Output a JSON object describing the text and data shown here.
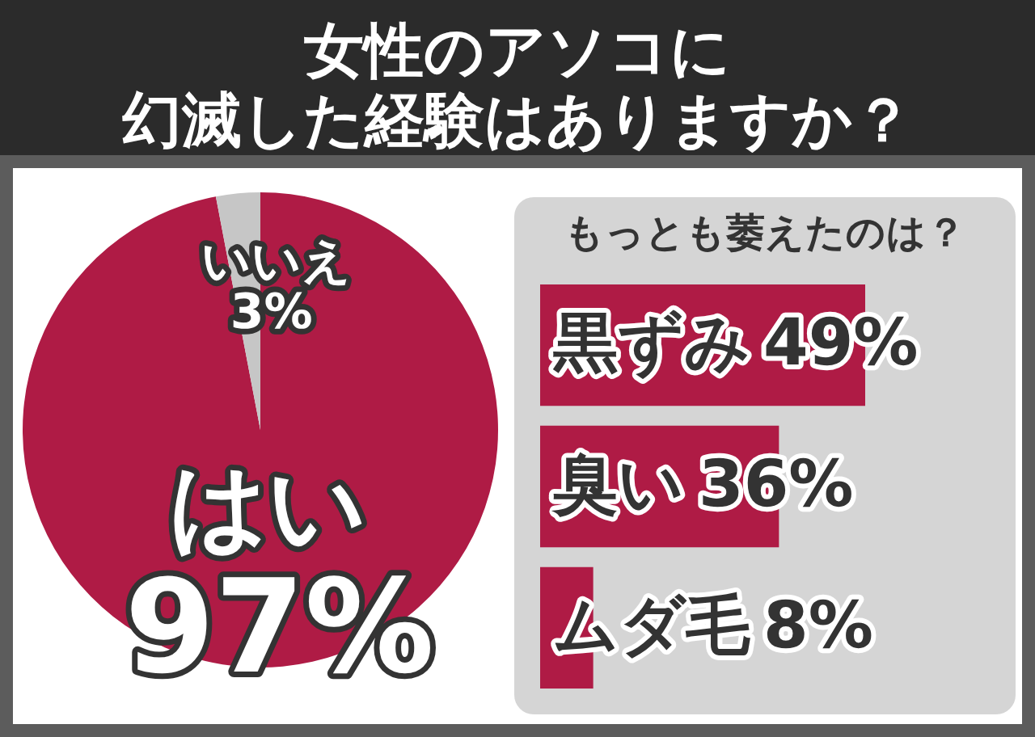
{
  "chart_data": [
    {
      "type": "pie",
      "title": "女性のアソコに幻滅した経験はありますか？",
      "categories": [
        "はい",
        "いいえ"
      ],
      "values": [
        97,
        3
      ],
      "colors": [
        "#af1b45",
        "#c6c6c6"
      ],
      "value_labels": [
        "97%",
        "3%"
      ]
    },
    {
      "type": "bar",
      "orientation": "horizontal",
      "title": "もっとも萎えたのは？",
      "categories": [
        "黒ずみ",
        "臭い",
        "ムダ毛"
      ],
      "values": [
        49,
        36,
        8
      ],
      "color": "#af1b45",
      "value_labels": [
        "49%",
        "36%",
        "8%"
      ]
    }
  ]
}
